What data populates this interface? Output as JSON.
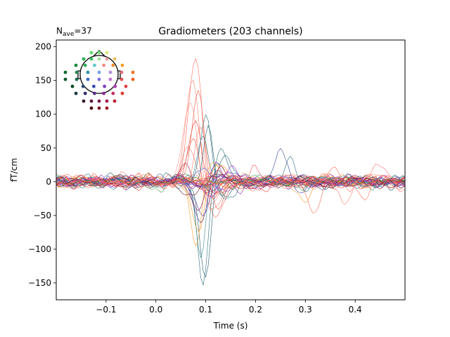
{
  "chart_data": {
    "type": "line",
    "title": "Gradiometers (203 channels)",
    "nave": {
      "prefix": "N",
      "subscript": "ave",
      "suffix": "=37"
    },
    "xlabel": "Time (s)",
    "ylabel": "fT/cm",
    "xlim": [
      -0.2,
      0.5
    ],
    "ylim": [
      -175,
      210
    ],
    "xticks": [
      -0.1,
      0.0,
      0.1,
      0.2,
      0.3,
      0.4
    ],
    "xtick_labels": [
      "−0.1",
      "0.0",
      "0.1",
      "0.2",
      "0.3",
      "0.4"
    ],
    "yticks": [
      -150,
      -100,
      -50,
      0,
      50,
      100,
      150,
      200
    ],
    "ytick_labels": [
      "−150",
      "−100",
      "−50",
      "0",
      "50",
      "100",
      "150",
      "200"
    ],
    "grid": false,
    "channel_count": 203,
    "sampling_step_s": 0.005,
    "legend": "sensor-layout inset, top-left",
    "series": [
      {
        "color": "#ff6a5a",
        "peak_t": 0.08,
        "peak_amp": 185
      },
      {
        "color": "#ff8070",
        "peak_t": 0.075,
        "peak_amp": 160
      },
      {
        "color": "#f05a4a",
        "peak_t": 0.085,
        "peak_amp": 140
      },
      {
        "color": "#ff9080",
        "peak_t": 0.07,
        "peak_amp": 120
      },
      {
        "color": "#e64a3a",
        "peak_t": 0.08,
        "peak_amp": 100
      },
      {
        "color": "#ff7a60",
        "peak_t": 0.09,
        "peak_amp": 85
      },
      {
        "color": "#ff5040",
        "peak_t": 0.075,
        "peak_amp": 70
      },
      {
        "color": "#f08070",
        "peak_t": 0.065,
        "peak_amp": 55
      },
      {
        "color": "#2a6f7a",
        "peak_t": 0.1,
        "peak_amp": 100
      },
      {
        "color": "#1f5f6b",
        "peak_t": 0.105,
        "peak_amp": 80
      },
      {
        "color": "#3a8a8f",
        "peak_t": 0.095,
        "peak_amp": 60
      },
      {
        "color": "#2a6f7a",
        "peak_t": 0.095,
        "peak_amp": -155
      },
      {
        "color": "#1f5f6b",
        "peak_t": 0.1,
        "peak_amp": -140
      },
      {
        "color": "#3a8a8f",
        "peak_t": 0.09,
        "peak_amp": -120
      },
      {
        "color": "#f0a030",
        "peak_t": 0.08,
        "peak_amp": -95
      },
      {
        "color": "#ff9a2a",
        "peak_t": 0.085,
        "peak_amp": -75
      },
      {
        "color": "#4a2a8a",
        "peak_t": 0.09,
        "peak_amp": -65
      },
      {
        "color": "#5a3aa0",
        "peak_t": 0.095,
        "peak_amp": -50
      },
      {
        "color": "#7a1a4a",
        "peak_t": 0.085,
        "peak_amp": -40
      },
      {
        "color": "#2a6f7a",
        "peak_t": 0.27,
        "peak_amp": 40
      },
      {
        "color": "#3a4a9a",
        "peak_t": 0.25,
        "peak_amp": 45
      },
      {
        "color": "#ff6a5a",
        "peak_t": 0.32,
        "peak_amp": -45
      },
      {
        "color": "#ff8070",
        "peak_t": 0.38,
        "peak_amp": -40
      },
      {
        "color": "#f0a030",
        "peak_t": 0.3,
        "peak_amp": -35
      },
      {
        "color": "#9b30c0",
        "peak_t": 0.15,
        "peak_amp": 20
      },
      {
        "color": "#b040d0",
        "peak_t": 0.14,
        "peak_amp": -20
      },
      {
        "color": "#8a2ab0",
        "peak_t": 0.12,
        "peak_amp": 25
      },
      {
        "color": "#c050e0",
        "peak_t": 0.11,
        "peak_amp": -25
      },
      {
        "color": "#e03030",
        "peak_t": 0.13,
        "peak_amp": 15
      },
      {
        "color": "#d02020",
        "peak_t": 0.12,
        "peak_amp": -15
      },
      {
        "color": "#5060d0",
        "peak_t": 0.1,
        "peak_amp": 18
      },
      {
        "color": "#3a4a9a",
        "peak_t": 0.11,
        "peak_amp": -18
      },
      {
        "color": "#2a8a3a",
        "peak_t": -0.02,
        "peak_amp": 12
      },
      {
        "color": "#4aa050",
        "peak_t": 0.0,
        "peak_amp": -12
      },
      {
        "color": "#a02040",
        "peak_t": 0.06,
        "peak_amp": 20
      },
      {
        "color": "#6a1a2a",
        "peak_t": 0.07,
        "peak_amp": -22
      },
      {
        "color": "#ff5050",
        "peak_t": 0.2,
        "peak_amp": 22
      },
      {
        "color": "#e84040",
        "peak_t": 0.22,
        "peak_amp": -20
      },
      {
        "color": "#ff7070",
        "peak_t": 0.45,
        "peak_amp": 25
      },
      {
        "color": "#ff6a5a",
        "peak_t": 0.42,
        "peak_amp": -25
      }
    ],
    "inset_sensors": [
      {
        "color": "#5ee06a"
      },
      {
        "color": "#7ae07a"
      },
      {
        "color": "#d8f07a"
      },
      {
        "color": "#2ab050"
      },
      {
        "color": "#40c060"
      },
      {
        "color": "#a0e0a0"
      },
      {
        "color": "#f0a0a0"
      },
      {
        "color": "#f0c060"
      },
      {
        "color": "#1a8a3a"
      },
      {
        "color": "#30b05a"
      },
      {
        "color": "#60c8c8"
      },
      {
        "color": "#f08a8a"
      },
      {
        "color": "#f09030"
      },
      {
        "color": "#f0a020"
      },
      {
        "color": "#106a30"
      },
      {
        "color": "#208a50"
      },
      {
        "color": "#3090a0"
      },
      {
        "color": "#70a0e0"
      },
      {
        "color": "#b090e0"
      },
      {
        "color": "#e07080"
      },
      {
        "color": "#f07020"
      },
      {
        "color": "#0a5a28"
      },
      {
        "color": "#1a6a50"
      },
      {
        "color": "#3a6ac0"
      },
      {
        "color": "#7a6ae0"
      },
      {
        "color": "#c070d0"
      },
      {
        "color": "#e05050"
      },
      {
        "color": "#f06020"
      },
      {
        "color": "#0a4a28"
      },
      {
        "color": "#2a4a70"
      },
      {
        "color": "#3a4ab0"
      },
      {
        "color": "#7a40c0"
      },
      {
        "color": "#b040b0"
      },
      {
        "color": "#e04040"
      },
      {
        "color": "#1a3a40"
      },
      {
        "color": "#2a2a70"
      },
      {
        "color": "#5a2a90"
      },
      {
        "color": "#8a2a90"
      },
      {
        "color": "#c03060"
      },
      {
        "color": "#e03a30"
      },
      {
        "color": "#3a1a30"
      },
      {
        "color": "#5a1a40"
      },
      {
        "color": "#7a1a50"
      },
      {
        "color": "#a01a40"
      },
      {
        "color": "#c02030"
      },
      {
        "color": "#4a0a10"
      },
      {
        "color": "#7a1020"
      },
      {
        "color": "#a01828"
      }
    ]
  }
}
